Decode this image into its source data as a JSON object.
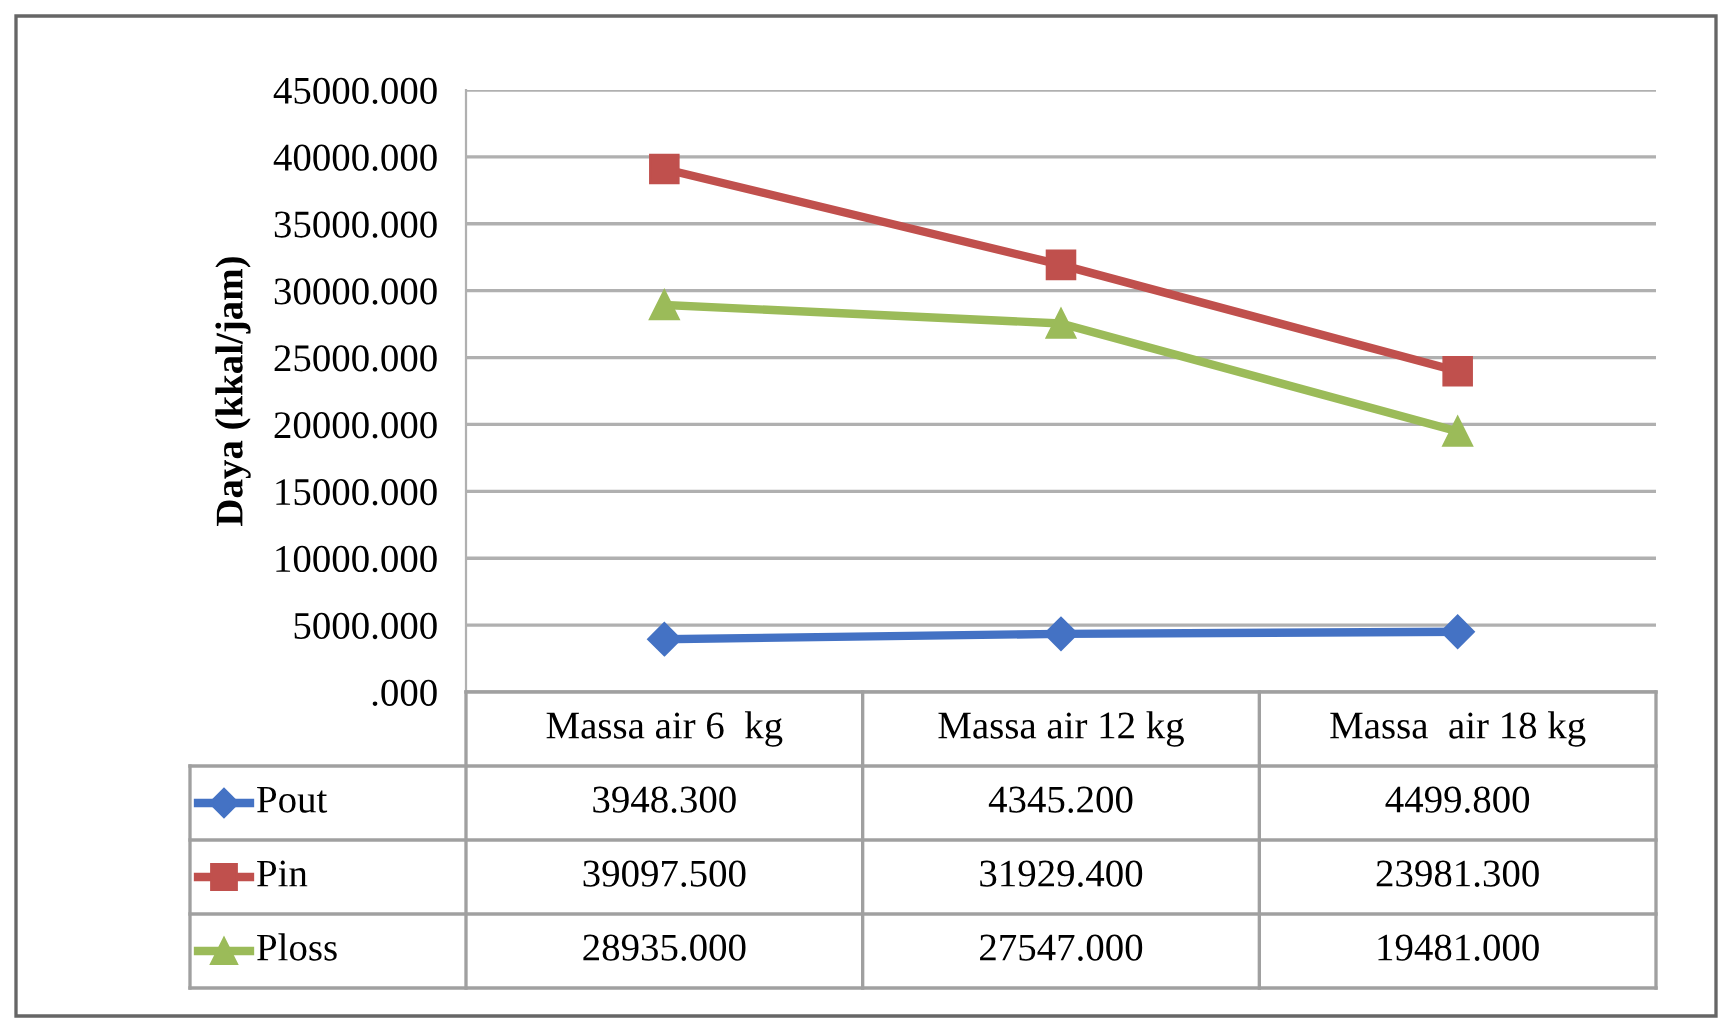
{
  "chart_data": {
    "type": "line",
    "ylabel": "Daya (kkal/jam)",
    "categories": [
      "Massa air 6  kg",
      "Massa air 12 kg",
      "Massa  air 18 kg"
    ],
    "series": [
      {
        "name": "Pout",
        "color": "#4472c4",
        "marker": "diamond",
        "values": [
          3948.3,
          4345.2,
          4499.8
        ],
        "value_labels": [
          "3948.300",
          "4345.200",
          "4499.800"
        ]
      },
      {
        "name": "Pin",
        "color": "#c0504d",
        "marker": "square",
        "values": [
          39097.5,
          31929.4,
          23981.3
        ],
        "value_labels": [
          "39097.500",
          "31929.400",
          "23981.300"
        ]
      },
      {
        "name": "Ploss",
        "color": "#9bbb59",
        "marker": "triangle",
        "values": [
          28935.0,
          27547.0,
          19481.0
        ],
        "value_labels": [
          "28935.000",
          "27547.000",
          "19481.000"
        ]
      }
    ],
    "ylim": [
      0,
      45000
    ],
    "yticks": [
      {
        "value": 0,
        "label": ".000"
      },
      {
        "value": 5000,
        "label": "5000.000"
      },
      {
        "value": 10000,
        "label": "10000.000"
      },
      {
        "value": 15000,
        "label": "15000.000"
      },
      {
        "value": 20000,
        "label": "20000.000"
      },
      {
        "value": 25000,
        "label": "25000.000"
      },
      {
        "value": 30000,
        "label": "30000.000"
      },
      {
        "value": 35000,
        "label": "35000.000"
      },
      {
        "value": 40000,
        "label": "40000.000"
      },
      {
        "value": 45000,
        "label": "45000.000"
      }
    ],
    "grid": "y",
    "legend": "bottom left"
  }
}
